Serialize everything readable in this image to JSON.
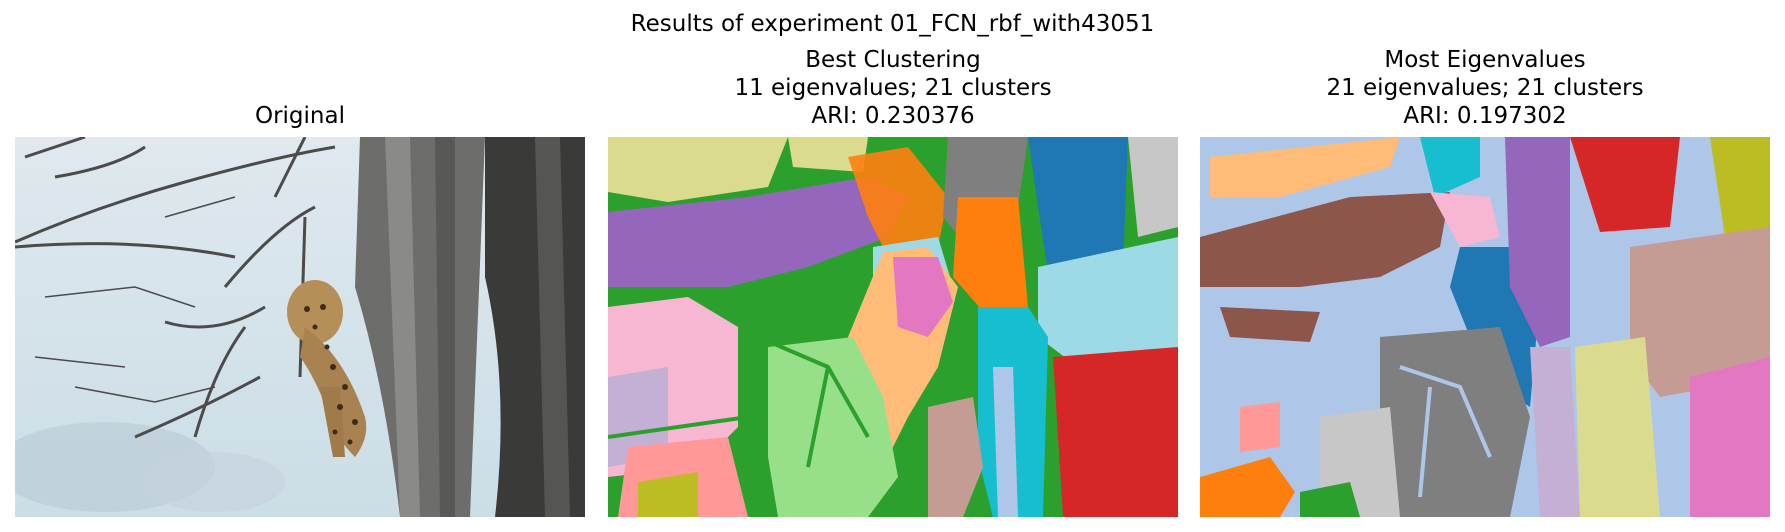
{
  "figure": {
    "suptitle": "Results of experiment 01_FCN_rbf_with43051"
  },
  "panels": [
    {
      "title_lines": [
        "Original"
      ]
    },
    {
      "title_lines": [
        "Best Clustering",
        "11 eigenvalues; 21 clusters",
        "ARI: 0.230376"
      ]
    },
    {
      "title_lines": [
        "Most Eigenvalues",
        "21 eigenvalues; 21 clusters",
        "ARI: 0.197302"
      ]
    }
  ],
  "colors": {
    "tab20_green": "#2ca02c",
    "tab20_purple": "#9467bd",
    "tab20_orange": "#ff7f0e",
    "tab20_blue": "#1f77b4",
    "tab20_red": "#d62728",
    "tab20_light_blue": "#aec7e8",
    "tab20_brown": "#8c564b",
    "tab20_gray": "#7f7f7f",
    "tab20_pink": "#f7b6d2",
    "tab20_cyan": "#17becf"
  }
}
